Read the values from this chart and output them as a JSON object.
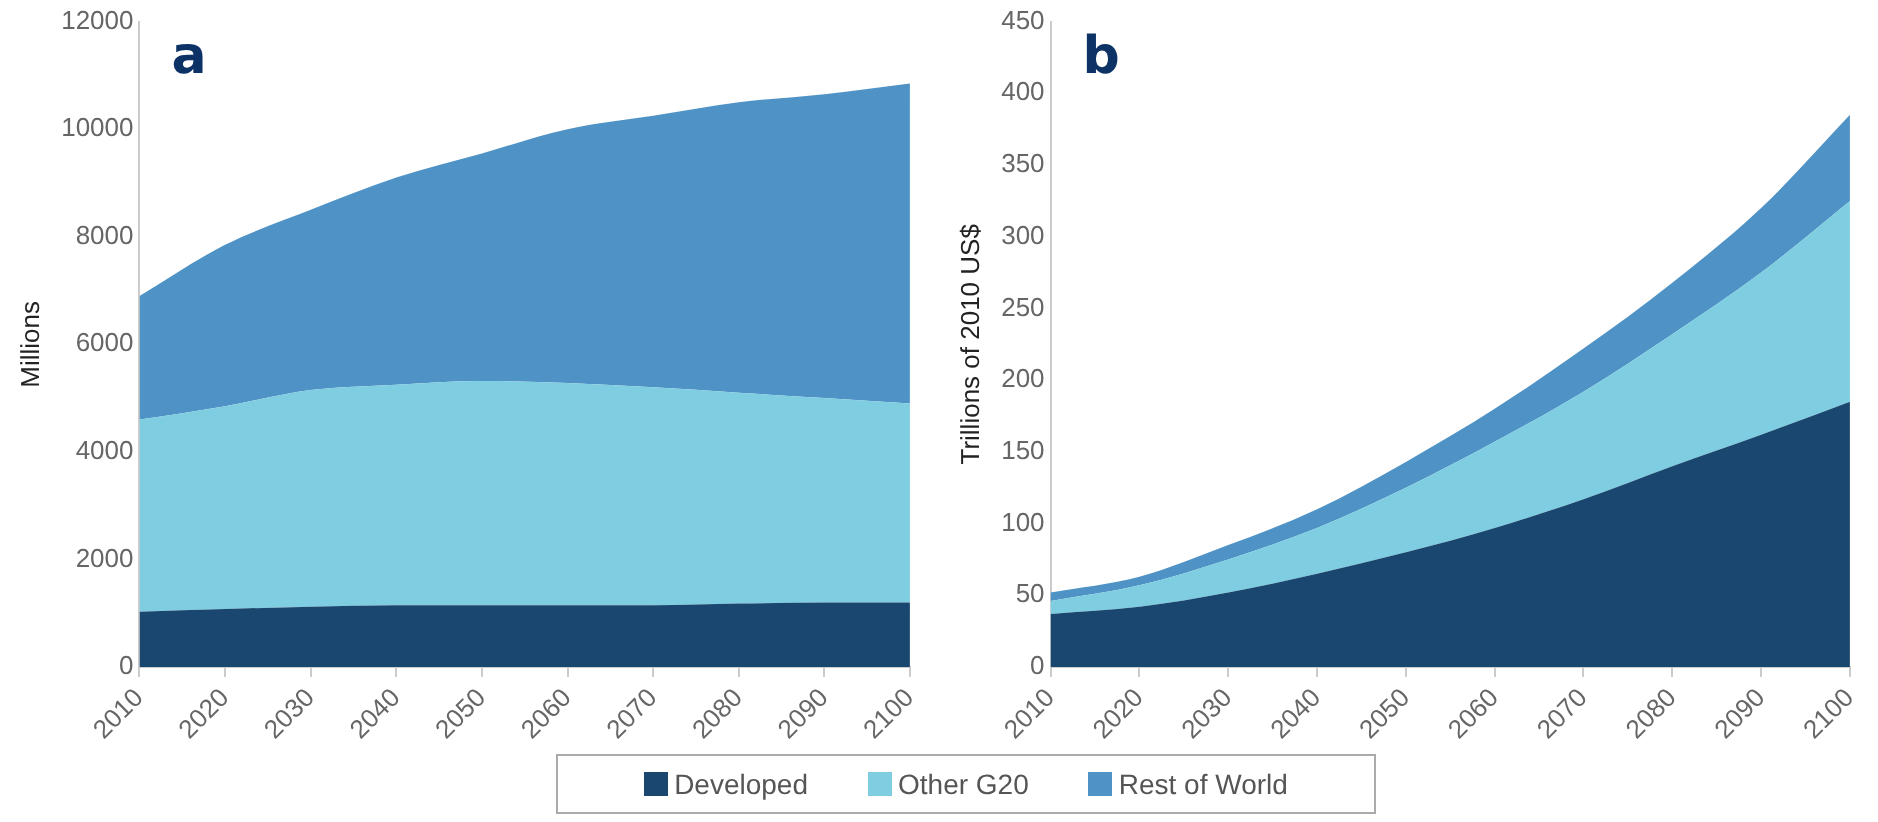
{
  "chart_data": [
    {
      "type": "area",
      "title": "a",
      "ylabel": "Millions",
      "stacked": true,
      "legend": "bottom",
      "grid": false,
      "x": [
        2010,
        2020,
        2030,
        2040,
        2050,
        2060,
        2070,
        2080,
        2090,
        2100
      ],
      "xlim": [
        2010,
        2100
      ],
      "xticks": [
        2010,
        2020,
        2030,
        2040,
        2050,
        2060,
        2070,
        2080,
        2090,
        2100
      ],
      "ylim": [
        0,
        12000
      ],
      "yticks": [
        0,
        2000,
        4000,
        6000,
        8000,
        10000,
        12000
      ],
      "series": [
        {
          "name": "Developed",
          "color": "#1a476f",
          "values": [
            1030,
            1080,
            1120,
            1150,
            1150,
            1150,
            1150,
            1180,
            1200,
            1200
          ]
        },
        {
          "name": "Other G20",
          "color": "#7ecde0",
          "values": [
            3570,
            3770,
            4030,
            4100,
            4170,
            4130,
            4050,
            3920,
            3800,
            3700
          ]
        },
        {
          "name": "Rest of World",
          "color": "#4f93c6",
          "values": [
            2300,
            3000,
            3350,
            3850,
            4230,
            4720,
            5050,
            5400,
            5650,
            5950
          ]
        }
      ]
    },
    {
      "type": "area",
      "title": "b",
      "ylabel": "Trillions of 2010 US$",
      "stacked": true,
      "grid": false,
      "x": [
        2010,
        2020,
        2030,
        2040,
        2050,
        2060,
        2070,
        2080,
        2090,
        2100
      ],
      "xlim": [
        2010,
        2100
      ],
      "xticks": [
        2010,
        2020,
        2030,
        2040,
        2050,
        2060,
        2070,
        2080,
        2090,
        2100
      ],
      "ylim": [
        0,
        450
      ],
      "yticks": [
        0,
        50,
        100,
        150,
        200,
        250,
        300,
        350,
        400,
        450
      ],
      "series": [
        {
          "color": "#1a476f",
          "values": [
            37,
            42,
            52,
            65,
            80,
            97,
            117,
            140,
            162,
            185
          ]
        },
        {
          "color": "#7ecde0",
          "values": [
            9,
            15,
            23,
            32,
            45,
            60,
            75,
            92,
            113,
            140
          ]
        },
        {
          "color": "#4f93c6",
          "values": [
            6,
            6,
            10,
            13,
            18,
            23,
            30,
            36,
            45,
            60
          ]
        }
      ]
    }
  ]
}
